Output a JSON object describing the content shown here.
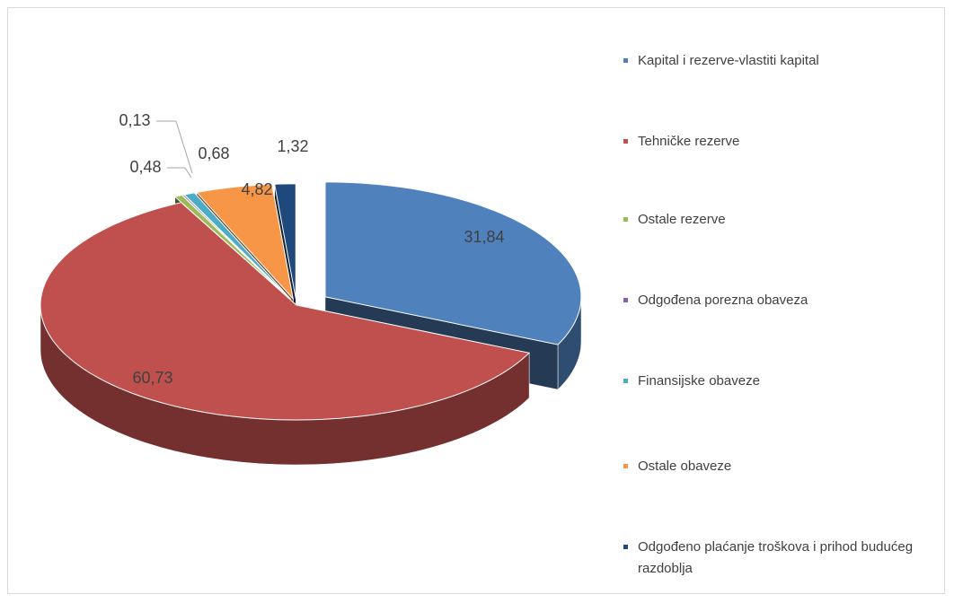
{
  "chart_data": {
    "type": "pie",
    "categories": [
      "Kapital i rezerve-vlastiti kapital",
      "Tehničke rezerve",
      "Ostale rezerve",
      "Odgođena porezna obaveza",
      "Finansijske obaveze",
      "Ostale obaveze",
      "Odgođeno plaćanje troškova i prihod budućeg razdoblja"
    ],
    "values": [
      31.84,
      60.73,
      0.48,
      0.13,
      0.68,
      4.82,
      1.32
    ],
    "value_labels": [
      "31,84",
      "60,73",
      "0,48",
      "0,13",
      "0,68",
      "4,82",
      "1,32"
    ],
    "colors": [
      "#4f81bd",
      "#c0504d",
      "#9bbb59",
      "#8064a2",
      "#4bacc6",
      "#f79646",
      "#1f497d"
    ],
    "legend": "right"
  }
}
